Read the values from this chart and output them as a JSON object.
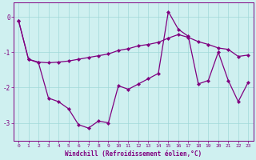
{
  "xlabel": "Windchill (Refroidissement éolien,°C)",
  "x_values": [
    0,
    1,
    2,
    3,
    4,
    5,
    6,
    7,
    8,
    9,
    10,
    11,
    12,
    13,
    14,
    15,
    16,
    17,
    18,
    19,
    20,
    21,
    22,
    23
  ],
  "y_series1": [
    -0.1,
    -1.2,
    -1.3,
    -2.3,
    -2.4,
    -2.6,
    -3.05,
    -3.15,
    -2.95,
    -3.0,
    -1.95,
    -2.05,
    -1.9,
    -1.75,
    -1.6,
    0.15,
    -0.35,
    -0.55,
    -1.9,
    -1.8,
    -1.0,
    -1.8,
    -2.4,
    -1.85
  ],
  "y_series2": [
    -0.1,
    -1.2,
    -1.28,
    -1.3,
    -1.28,
    -1.25,
    -1.2,
    -1.15,
    -1.1,
    -1.05,
    -0.95,
    -0.9,
    -0.82,
    -0.78,
    -0.72,
    -0.6,
    -0.5,
    -0.58,
    -0.7,
    -0.78,
    -0.88,
    -0.92,
    -1.12,
    -1.08
  ],
  "line_color": "#800080",
  "bg_color": "#cff0f0",
  "grid_color": "#a0d8d8",
  "ylim": [
    -3.5,
    0.4
  ],
  "yticks": [
    0,
    -1,
    -2,
    -3
  ],
  "xlim": [
    -0.5,
    23.5
  ],
  "xlabel_fontsize": 5.5,
  "xtick_fontsize": 4.5,
  "ytick_fontsize": 5.5
}
